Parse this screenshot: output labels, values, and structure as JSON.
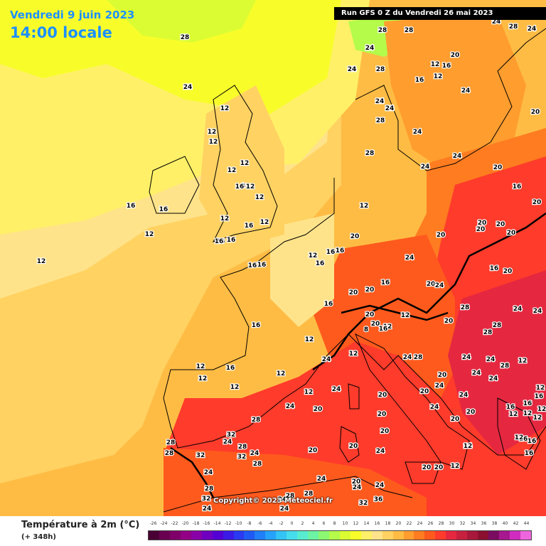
{
  "header": {
    "date_label": "Vendredi 9 juin 2023",
    "time_label": "14:00 locale",
    "run_label": "Run GFS 0 Z du Vendredi 26 mai 2023"
  },
  "copyright": "Copyright© 2023 Meteociel.fr",
  "legend": {
    "title": "Température à 2m (°C)",
    "subtitle": "(+ 348h)",
    "ticks": [
      "-26",
      "-24",
      "-22",
      "-20",
      "-18",
      "-16",
      "-14",
      "-12",
      "-10",
      "-8",
      "-6",
      "-4",
      "-2",
      "0",
      "2",
      "4",
      "6",
      "8",
      "10",
      "12",
      "14",
      "16",
      "18",
      "20",
      "22",
      "24",
      "26",
      "28",
      "30",
      "32",
      "34",
      "36",
      "38",
      "40",
      "42",
      "44"
    ],
    "colors": [
      "#4b0035",
      "#6a0050",
      "#80006a",
      "#930085",
      "#8a00a8",
      "#6f00c0",
      "#5400d5",
      "#3c1ae6",
      "#2a3af0",
      "#1f5af5",
      "#1f7ef8",
      "#25a2fa",
      "#33c3f5",
      "#45dcec",
      "#57ecd0",
      "#6cf3a3",
      "#8cf871",
      "#b4fb4a",
      "#dbfc33",
      "#f8fd2a",
      "#fff068",
      "#ffe38a",
      "#ffd262",
      "#ffbc44",
      "#ff9d2f",
      "#ff7c20",
      "#ff5a1d",
      "#ff3b2b",
      "#e52840",
      "#c8203f",
      "#a8183a",
      "#8b1030",
      "#7a0c60",
      "#a8188e",
      "#d02cc0",
      "#ee66dd"
    ]
  },
  "map": {
    "temperature_labels": [
      {
        "t": "8"
      },
      {
        "t": "8"
      },
      {
        "t": "12"
      },
      {
        "t": "12"
      },
      {
        "t": "16"
      },
      {
        "t": "12"
      },
      {
        "t": "16"
      },
      {
        "t": "12"
      },
      {
        "t": "12"
      },
      {
        "t": "16"
      },
      {
        "t": "16"
      },
      {
        "t": "12"
      },
      {
        "t": "12"
      },
      {
        "t": "16"
      },
      {
        "t": "16"
      },
      {
        "t": "12"
      },
      {
        "t": "12"
      },
      {
        "t": "12"
      },
      {
        "t": "12"
      },
      {
        "t": "12"
      },
      {
        "t": "12"
      },
      {
        "t": "8"
      },
      {
        "t": "16"
      },
      {
        "t": "12"
      },
      {
        "t": "12"
      },
      {
        "t": "12"
      },
      {
        "t": "16"
      },
      {
        "t": "16"
      },
      {
        "t": "16"
      },
      {
        "t": "16"
      },
      {
        "t": "16"
      },
      {
        "t": "16"
      },
      {
        "t": "12"
      },
      {
        "t": "12"
      },
      {
        "t": "12"
      },
      {
        "t": "16"
      },
      {
        "t": "16"
      },
      {
        "t": "12"
      },
      {
        "t": "16"
      },
      {
        "t": "16"
      },
      {
        "t": "16"
      },
      {
        "t": "16"
      },
      {
        "t": "12"
      },
      {
        "t": "12"
      },
      {
        "t": "16"
      },
      {
        "t": "12"
      },
      {
        "t": "12"
      },
      {
        "t": "12"
      },
      {
        "t": "12"
      },
      {
        "t": "20"
      },
      {
        "t": "16"
      },
      {
        "t": "16"
      },
      {
        "t": "20"
      },
      {
        "t": "24"
      },
      {
        "t": "20"
      },
      {
        "t": "20"
      },
      {
        "t": "20"
      },
      {
        "t": "20"
      },
      {
        "t": "24"
      },
      {
        "t": "24"
      },
      {
        "t": "12"
      },
      {
        "t": "20"
      },
      {
        "t": "20"
      },
      {
        "t": "8"
      },
      {
        "t": "12"
      },
      {
        "t": "16"
      },
      {
        "t": "12"
      },
      {
        "t": "24"
      },
      {
        "t": "28"
      },
      {
        "t": "28"
      },
      {
        "t": "28"
      },
      {
        "t": "28"
      },
      {
        "t": "24"
      },
      {
        "t": "24"
      },
      {
        "t": "24"
      },
      {
        "t": "24"
      },
      {
        "t": "28"
      },
      {
        "t": "24"
      },
      {
        "t": "12"
      },
      {
        "t": "24"
      },
      {
        "t": "16"
      },
      {
        "t": "16"
      },
      {
        "t": "16"
      },
      {
        "t": "12"
      },
      {
        "t": "12"
      },
      {
        "t": "12"
      },
      {
        "t": "12"
      },
      {
        "t": "12"
      },
      {
        "t": "16"
      },
      {
        "t": "16"
      },
      {
        "t": "16"
      },
      {
        "t": "12"
      },
      {
        "t": "24"
      },
      {
        "t": "20"
      },
      {
        "t": "24"
      },
      {
        "t": "20"
      },
      {
        "t": "24"
      },
      {
        "t": "20"
      },
      {
        "t": "24"
      },
      {
        "t": "20"
      },
      {
        "t": "20"
      },
      {
        "t": "20"
      },
      {
        "t": "24"
      },
      {
        "t": "20"
      },
      {
        "t": "24"
      },
      {
        "t": "28"
      },
      {
        "t": "24"
      },
      {
        "t": "28"
      },
      {
        "t": "24"
      },
      {
        "t": "32"
      },
      {
        "t": "28"
      },
      {
        "t": "32"
      },
      {
        "t": "28"
      },
      {
        "t": "28"
      },
      {
        "t": "32"
      },
      {
        "t": "24"
      },
      {
        "t": "28"
      },
      {
        "t": "32"
      },
      {
        "t": "24"
      },
      {
        "t": "24"
      },
      {
        "t": "28"
      },
      {
        "t": "24"
      },
      {
        "t": "28"
      },
      {
        "t": "24"
      },
      {
        "t": "20"
      },
      {
        "t": "24"
      },
      {
        "t": "24"
      },
      {
        "t": "36"
      },
      {
        "t": "32"
      },
      {
        "t": "20"
      },
      {
        "t": "20"
      },
      {
        "t": "24"
      },
      {
        "t": "20"
      },
      {
        "t": "20"
      },
      {
        "t": "12"
      },
      {
        "t": "12"
      },
      {
        "t": "16"
      },
      {
        "t": "20"
      },
      {
        "t": "20"
      },
      {
        "t": "20"
      },
      {
        "t": "16"
      },
      {
        "t": "20"
      },
      {
        "t": "20"
      },
      {
        "t": "20"
      },
      {
        "t": "20"
      },
      {
        "t": "20"
      },
      {
        "t": "24"
      },
      {
        "t": "24"
      },
      {
        "t": "20"
      },
      {
        "t": "24"
      },
      {
        "t": "24"
      },
      {
        "t": "20"
      },
      {
        "t": "24"
      },
      {
        "t": "28"
      },
      {
        "t": "24"
      },
      {
        "t": "28"
      },
      {
        "t": "28"
      },
      {
        "t": "24"
      },
      {
        "t": "28"
      },
      {
        "t": "24"
      },
      {
        "t": "24"
      },
      {
        "t": "28"
      },
      {
        "t": "24"
      },
      {
        "t": "24"
      },
      {
        "t": "28"
      },
      {
        "t": "28"
      }
    ]
  }
}
